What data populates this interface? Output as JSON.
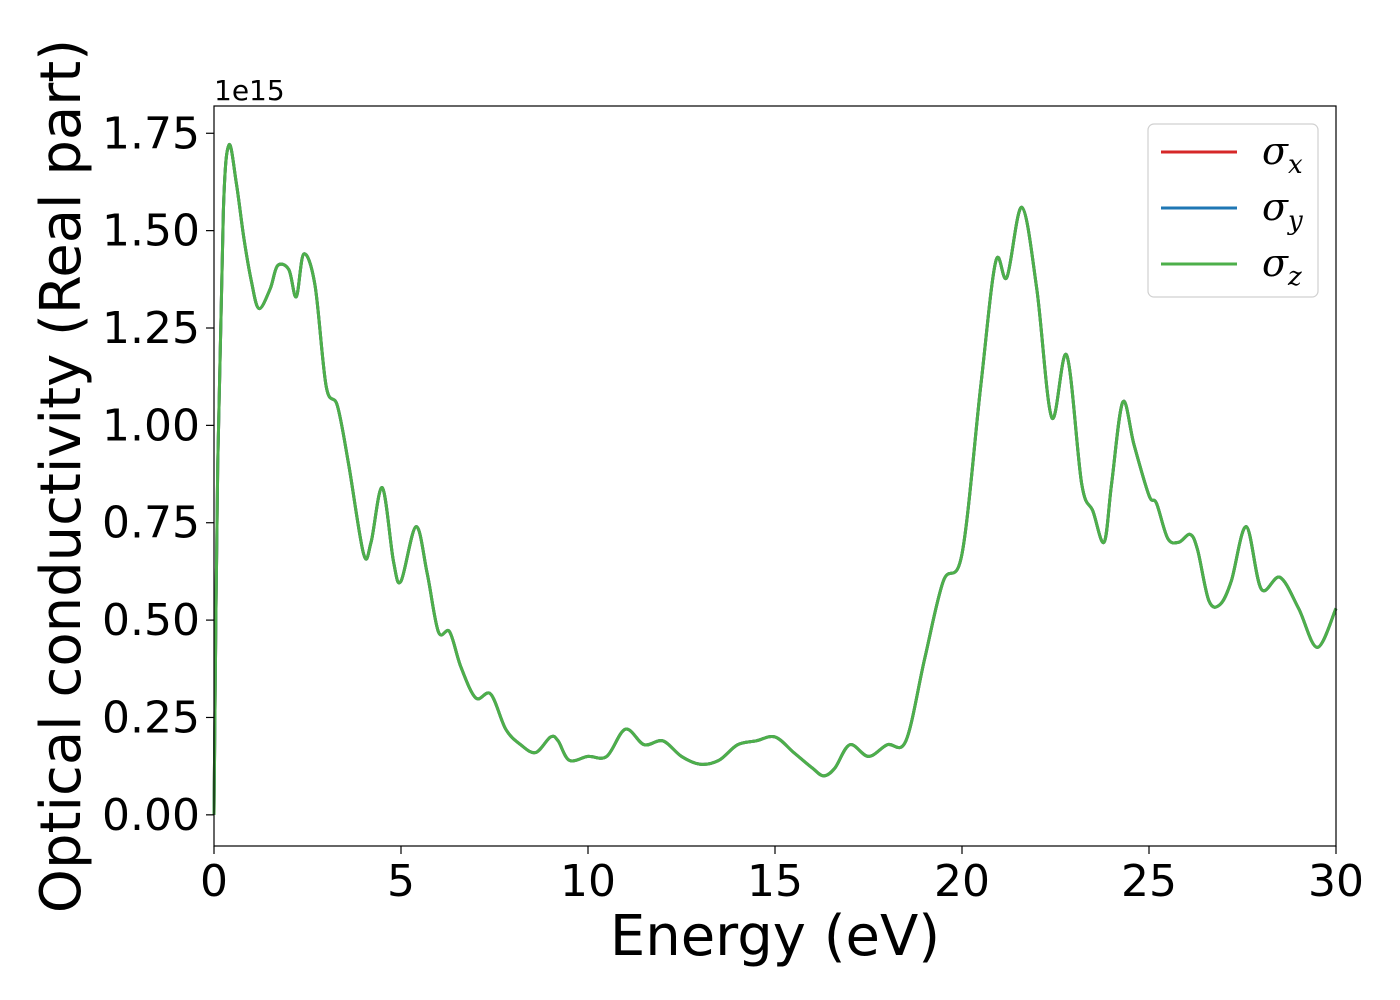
{
  "chart_data": {
    "type": "line",
    "title": "",
    "xlabel": "Energy (eV)",
    "ylabel": "Optical conductivity (Real part)",
    "y_offset_label": "1e15",
    "xlim": [
      0,
      30
    ],
    "ylim": [
      -0.08,
      1.82
    ],
    "xticks": [
      0,
      5,
      10,
      15,
      20,
      25,
      30
    ],
    "xtick_labels": [
      "0",
      "5",
      "10",
      "15",
      "20",
      "25",
      "30"
    ],
    "yticks": [
      0.0,
      0.25,
      0.5,
      0.75,
      1.0,
      1.25,
      1.5,
      1.75
    ],
    "ytick_labels": [
      "0.00",
      "0.25",
      "0.50",
      "0.75",
      "1.00",
      "1.25",
      "1.50",
      "1.75"
    ],
    "grid": false,
    "legend": "top-right",
    "x": [
      0,
      0.1,
      0.25,
      0.4,
      0.6,
      0.8,
      1.0,
      1.2,
      1.5,
      1.7,
      2.0,
      2.2,
      2.4,
      2.7,
      3.0,
      3.3,
      3.6,
      4.0,
      4.2,
      4.5,
      4.8,
      5.0,
      5.4,
      5.7,
      6.0,
      6.3,
      6.6,
      7.0,
      7.4,
      7.8,
      8.2,
      8.6,
      9.0,
      9.2,
      9.5,
      10.0,
      10.5,
      11.0,
      11.5,
      12.0,
      12.5,
      13.0,
      13.5,
      14.0,
      14.5,
      15.0,
      15.5,
      16.0,
      16.3,
      16.6,
      17.0,
      17.5,
      18.0,
      18.5,
      19.0,
      19.5,
      20.0,
      20.5,
      20.9,
      21.2,
      21.6,
      22.0,
      22.4,
      22.8,
      23.2,
      23.5,
      23.8,
      24.0,
      24.3,
      24.6,
      25.0,
      25.2,
      25.5,
      25.8,
      26.1,
      26.3,
      26.6,
      26.9,
      27.2,
      27.6,
      28.0,
      28.5,
      29.0,
      29.5,
      30.0
    ],
    "series": [
      {
        "name": "σx",
        "color": "#d62728",
        "values": [
          0.0,
          0.9,
          1.55,
          1.72,
          1.62,
          1.48,
          1.37,
          1.3,
          1.35,
          1.41,
          1.4,
          1.33,
          1.44,
          1.36,
          1.1,
          1.05,
          0.9,
          0.67,
          0.7,
          0.84,
          0.65,
          0.6,
          0.74,
          0.62,
          0.47,
          0.47,
          0.38,
          0.3,
          0.31,
          0.22,
          0.18,
          0.16,
          0.2,
          0.19,
          0.14,
          0.15,
          0.15,
          0.22,
          0.18,
          0.19,
          0.15,
          0.13,
          0.14,
          0.18,
          0.19,
          0.2,
          0.16,
          0.12,
          0.1,
          0.12,
          0.18,
          0.15,
          0.18,
          0.19,
          0.4,
          0.6,
          0.67,
          1.1,
          1.42,
          1.38,
          1.56,
          1.35,
          1.02,
          1.18,
          0.85,
          0.78,
          0.7,
          0.85,
          1.06,
          0.95,
          0.82,
          0.8,
          0.71,
          0.7,
          0.72,
          0.68,
          0.55,
          0.54,
          0.6,
          0.74,
          0.58,
          0.61,
          0.53,
          0.43,
          0.53
        ]
      },
      {
        "name": "σy",
        "color": "#1f77b4",
        "values": [
          0.0,
          0.9,
          1.55,
          1.72,
          1.62,
          1.48,
          1.37,
          1.3,
          1.35,
          1.41,
          1.4,
          1.33,
          1.44,
          1.36,
          1.1,
          1.05,
          0.9,
          0.67,
          0.7,
          0.84,
          0.65,
          0.6,
          0.74,
          0.62,
          0.47,
          0.47,
          0.38,
          0.3,
          0.31,
          0.22,
          0.18,
          0.16,
          0.2,
          0.19,
          0.14,
          0.15,
          0.15,
          0.22,
          0.18,
          0.19,
          0.15,
          0.13,
          0.14,
          0.18,
          0.19,
          0.2,
          0.16,
          0.12,
          0.1,
          0.12,
          0.18,
          0.15,
          0.18,
          0.19,
          0.4,
          0.6,
          0.67,
          1.1,
          1.42,
          1.38,
          1.56,
          1.35,
          1.02,
          1.18,
          0.85,
          0.78,
          0.7,
          0.85,
          1.06,
          0.95,
          0.82,
          0.8,
          0.71,
          0.7,
          0.72,
          0.68,
          0.55,
          0.54,
          0.6,
          0.74,
          0.58,
          0.61,
          0.53,
          0.43,
          0.53
        ]
      },
      {
        "name": "σz",
        "color": "#4daf4a",
        "values": [
          0.0,
          0.9,
          1.55,
          1.72,
          1.62,
          1.48,
          1.37,
          1.3,
          1.35,
          1.41,
          1.4,
          1.33,
          1.44,
          1.36,
          1.1,
          1.05,
          0.9,
          0.67,
          0.7,
          0.84,
          0.65,
          0.6,
          0.74,
          0.62,
          0.47,
          0.47,
          0.38,
          0.3,
          0.31,
          0.22,
          0.18,
          0.16,
          0.2,
          0.19,
          0.14,
          0.15,
          0.15,
          0.22,
          0.18,
          0.19,
          0.15,
          0.13,
          0.14,
          0.18,
          0.19,
          0.2,
          0.16,
          0.12,
          0.1,
          0.12,
          0.18,
          0.15,
          0.18,
          0.19,
          0.4,
          0.6,
          0.67,
          1.1,
          1.42,
          1.38,
          1.56,
          1.35,
          1.02,
          1.18,
          0.85,
          0.78,
          0.7,
          0.85,
          1.06,
          0.95,
          0.82,
          0.8,
          0.71,
          0.7,
          0.72,
          0.68,
          0.55,
          0.54,
          0.6,
          0.74,
          0.58,
          0.61,
          0.53,
          0.43,
          0.53
        ]
      }
    ]
  }
}
